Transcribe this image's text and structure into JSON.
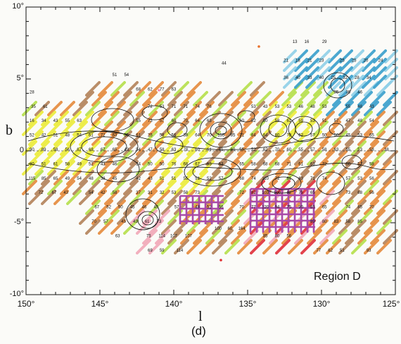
{
  "figure": {
    "region_label": "Region D",
    "panel_label": "(d)",
    "x_axis_label": "l",
    "y_axis_label": "b"
  },
  "axes": {
    "x_ticks": [
      "150°",
      "145°",
      "140°",
      "135°",
      "130°",
      "125°"
    ],
    "y_ticks": [
      "10°",
      "5°",
      "0",
      "-5°",
      "-10°"
    ],
    "x_range": [
      150,
      125
    ],
    "y_range": [
      10,
      -10
    ]
  },
  "colors": {
    "frame": "#111111",
    "orange": "#e58a3c",
    "brown": "#b4835a",
    "yellow": "#ecec3a",
    "lightgreen": "#b6e04c",
    "pink": "#f2a8b8",
    "red": "#e0303a",
    "purple": "#a84aa8",
    "cyan": "#3aa0cc",
    "lightblue": "#90d0e8",
    "contour": "#111111"
  },
  "numbers": [
    {
      "l": 149.6,
      "b": 4.0,
      "t": "28"
    },
    {
      "l": 149.5,
      "b": 3.0,
      "t": "35"
    },
    {
      "l": 148.7,
      "b": 3.0,
      "t": "61"
    },
    {
      "l": 149.6,
      "b": 2.0,
      "t": "16"
    },
    {
      "l": 148.8,
      "b": 2.0,
      "t": "34"
    },
    {
      "l": 148.0,
      "b": 2.0,
      "t": "43"
    },
    {
      "l": 147.2,
      "b": 2.0,
      "t": "55"
    },
    {
      "l": 146.4,
      "b": 2.0,
      "t": "63"
    },
    {
      "l": 149.6,
      "b": 1.0,
      "t": "52"
    },
    {
      "l": 148.8,
      "b": 1.0,
      "t": "42"
    },
    {
      "l": 148.0,
      "b": 1.0,
      "t": "51"
    },
    {
      "l": 147.2,
      "b": 1.0,
      "t": "48"
    },
    {
      "l": 146.4,
      "b": 1.0,
      "t": "54"
    },
    {
      "l": 145.6,
      "b": 1.0,
      "t": "61"
    },
    {
      "l": 144.8,
      "b": 1.0,
      "t": "72"
    },
    {
      "l": 144.0,
      "b": 1.0,
      "t": "63"
    },
    {
      "l": 143.2,
      "b": 1.0,
      "t": "55"
    },
    {
      "l": 149.6,
      "b": 0.0,
      "t": "90"
    },
    {
      "l": 148.8,
      "b": 0.0,
      "t": "69"
    },
    {
      "l": 148.0,
      "b": 0.0,
      "t": "58"
    },
    {
      "l": 147.2,
      "b": 0.0,
      "t": "56"
    },
    {
      "l": 146.4,
      "b": 0.0,
      "t": "67"
    },
    {
      "l": 145.6,
      "b": 0.0,
      "t": "68"
    },
    {
      "l": 144.8,
      "b": 0.0,
      "t": "67"
    },
    {
      "l": 144.0,
      "b": 0.0,
      "t": "65"
    },
    {
      "l": 143.2,
      "b": 0.0,
      "t": "43"
    },
    {
      "l": 149.6,
      "b": -1.0,
      "t": "80"
    },
    {
      "l": 148.8,
      "b": -1.0,
      "t": "51"
    },
    {
      "l": 148.0,
      "b": -1.0,
      "t": "61"
    },
    {
      "l": 147.2,
      "b": -1.0,
      "t": "58"
    },
    {
      "l": 146.4,
      "b": -1.0,
      "t": "49"
    },
    {
      "l": 145.6,
      "b": -1.0,
      "t": "52"
    },
    {
      "l": 144.8,
      "b": -1.0,
      "t": "43"
    },
    {
      "l": 144.0,
      "b": -1.0,
      "t": "46"
    },
    {
      "l": 149.6,
      "b": -2.0,
      "t": "115"
    },
    {
      "l": 148.8,
      "b": -2.0,
      "t": "85"
    },
    {
      "l": 148.0,
      "b": -2.0,
      "t": "65"
    },
    {
      "l": 147.2,
      "b": -2.0,
      "t": "49"
    },
    {
      "l": 146.4,
      "b": -2.0,
      "t": "54"
    },
    {
      "l": 145.6,
      "b": -2.0,
      "t": "48"
    },
    {
      "l": 144.8,
      "b": -2.0,
      "t": "38"
    },
    {
      "l": 144.0,
      "b": -2.0,
      "t": "45"
    },
    {
      "l": 149.0,
      "b": -3.0,
      "t": "72"
    },
    {
      "l": 148.1,
      "b": -3.0,
      "t": "67"
    },
    {
      "l": 147.3,
      "b": -3.0,
      "t": "43"
    },
    {
      "l": 145.6,
      "b": -3.0,
      "t": "54"
    },
    {
      "l": 144.8,
      "b": -3.0,
      "t": "42"
    },
    {
      "l": 144.0,
      "b": -3.0,
      "t": "58"
    },
    {
      "l": 145.2,
      "b": -4.0,
      "t": "67"
    },
    {
      "l": 144.4,
      "b": -4.0,
      "t": "52"
    },
    {
      "l": 143.6,
      "b": -4.0,
      "t": "50"
    },
    {
      "l": 142.8,
      "b": -4.0,
      "t": "45"
    },
    {
      "l": 142.0,
      "b": -4.0,
      "t": "46"
    },
    {
      "l": 141.2,
      "b": -4.0,
      "t": "45"
    },
    {
      "l": 145.4,
      "b": -5.0,
      "t": "70"
    },
    {
      "l": 144.6,
      "b": -5.0,
      "t": "57"
    },
    {
      "l": 143.4,
      "b": -5.0,
      "t": "45"
    },
    {
      "l": 142.6,
      "b": -5.0,
      "t": "43"
    },
    {
      "l": 141.8,
      "b": -5.0,
      "t": "61"
    },
    {
      "l": 141.0,
      "b": -5.0,
      "t": "73"
    },
    {
      "l": 143.8,
      "b": -6.0,
      "t": "63"
    },
    {
      "l": 141.7,
      "b": -6.0,
      "t": "75"
    },
    {
      "l": 140.8,
      "b": -6.0,
      "t": "114"
    },
    {
      "l": 140.0,
      "b": -6.0,
      "t": "107"
    },
    {
      "l": 139.0,
      "b": -6.0,
      "t": "107"
    },
    {
      "l": 141.6,
      "b": -7.0,
      "t": "69"
    },
    {
      "l": 140.8,
      "b": -7.0,
      "t": "59"
    },
    {
      "l": 139.6,
      "b": -7.0,
      "t": "114"
    },
    {
      "l": 144.0,
      "b": 5.2,
      "t": "51"
    },
    {
      "l": 143.2,
      "b": 5.2,
      "t": "54"
    },
    {
      "l": 142.4,
      "b": 4.2,
      "t": "68"
    },
    {
      "l": 141.6,
      "b": 4.2,
      "t": "62"
    },
    {
      "l": 140.8,
      "b": 4.2,
      "t": "77"
    },
    {
      "l": 140.0,
      "b": 4.2,
      "t": "63"
    },
    {
      "l": 141.6,
      "b": 3.0,
      "t": "72"
    },
    {
      "l": 140.8,
      "b": 3.0,
      "t": "53"
    },
    {
      "l": 140.0,
      "b": 3.0,
      "t": "71"
    },
    {
      "l": 139.2,
      "b": 3.0,
      "t": "71"
    },
    {
      "l": 138.4,
      "b": 3.0,
      "t": "74"
    },
    {
      "l": 137.6,
      "b": 3.0,
      "t": "76"
    },
    {
      "l": 142.4,
      "b": 2.0,
      "t": "55"
    },
    {
      "l": 141.6,
      "b": 2.0,
      "t": "73"
    },
    {
      "l": 140.8,
      "b": 2.0,
      "t": "57"
    },
    {
      "l": 140.0,
      "b": 2.0,
      "t": "60"
    },
    {
      "l": 139.2,
      "b": 2.0,
      "t": "70"
    },
    {
      "l": 138.4,
      "b": 2.0,
      "t": "64"
    },
    {
      "l": 137.6,
      "b": 2.0,
      "t": "63"
    },
    {
      "l": 142.4,
      "b": 1.0,
      "t": "61"
    },
    {
      "l": 141.6,
      "b": 1.0,
      "t": "25"
    },
    {
      "l": 140.8,
      "b": 1.0,
      "t": "58"
    },
    {
      "l": 140.0,
      "b": 1.0,
      "t": "56"
    },
    {
      "l": 139.2,
      "b": 1.0,
      "t": "38"
    },
    {
      "l": 138.4,
      "b": 1.0,
      "t": "64"
    },
    {
      "l": 137.6,
      "b": 1.0,
      "t": "70"
    },
    {
      "l": 136.8,
      "b": 1.0,
      "t": "155"
    },
    {
      "l": 136.0,
      "b": 1.0,
      "t": "85"
    },
    {
      "l": 142.4,
      "b": 0.0,
      "t": "54"
    },
    {
      "l": 141.6,
      "b": 0.0,
      "t": "47"
    },
    {
      "l": 140.8,
      "b": 0.0,
      "t": "58"
    },
    {
      "l": 140.0,
      "b": 0.0,
      "t": "63"
    },
    {
      "l": 139.2,
      "b": 0.0,
      "t": "78"
    },
    {
      "l": 138.4,
      "b": 0.0,
      "t": "60"
    },
    {
      "l": 137.6,
      "b": 0.0,
      "t": "61"
    },
    {
      "l": 136.8,
      "b": 0.0,
      "t": "61"
    },
    {
      "l": 136.0,
      "b": 0.0,
      "t": "60"
    },
    {
      "l": 142.4,
      "b": -1.0,
      "t": "34"
    },
    {
      "l": 141.6,
      "b": -1.0,
      "t": "50"
    },
    {
      "l": 140.8,
      "b": -1.0,
      "t": "50"
    },
    {
      "l": 140.0,
      "b": -1.0,
      "t": "76"
    },
    {
      "l": 139.2,
      "b": -1.0,
      "t": "68"
    },
    {
      "l": 138.4,
      "b": -1.0,
      "t": "67"
    },
    {
      "l": 137.6,
      "b": -1.0,
      "t": "53"
    },
    {
      "l": 136.8,
      "b": -1.0,
      "t": "53"
    },
    {
      "l": 142.4,
      "b": -2.0,
      "t": "42"
    },
    {
      "l": 141.6,
      "b": -2.0,
      "t": "43"
    },
    {
      "l": 140.8,
      "b": -2.0,
      "t": "51"
    },
    {
      "l": 140.0,
      "b": -2.0,
      "t": "51"
    },
    {
      "l": 139.2,
      "b": -2.0,
      "t": "55"
    },
    {
      "l": 138.4,
      "b": -2.0,
      "t": "51"
    },
    {
      "l": 137.6,
      "b": -2.0,
      "t": "52"
    },
    {
      "l": 136.8,
      "b": -2.0,
      "t": "57"
    },
    {
      "l": 142.4,
      "b": -3.0,
      "t": "37"
    },
    {
      "l": 141.6,
      "b": -3.0,
      "t": "31"
    },
    {
      "l": 140.8,
      "b": -3.0,
      "t": "32"
    },
    {
      "l": 140.0,
      "b": -3.0,
      "t": "53"
    },
    {
      "l": 139.2,
      "b": -3.0,
      "t": "58"
    },
    {
      "l": 138.4,
      "b": -3.0,
      "t": "73"
    },
    {
      "l": 139.8,
      "b": -4.0,
      "t": "57"
    },
    {
      "l": 138.4,
      "b": -4.0,
      "t": "48"
    },
    {
      "l": 137.6,
      "b": -4.0,
      "t": "52"
    },
    {
      "l": 136.8,
      "b": -4.0,
      "t": "56"
    },
    {
      "l": 137.0,
      "b": -5.5,
      "t": "100"
    },
    {
      "l": 136.2,
      "b": -5.5,
      "t": "60"
    },
    {
      "l": 135.4,
      "b": -5.5,
      "t": "164"
    },
    {
      "l": 136.6,
      "b": 6.0,
      "t": "44"
    },
    {
      "l": 134.6,
      "b": 3.0,
      "t": "53"
    },
    {
      "l": 133.8,
      "b": 3.0,
      "t": "43"
    },
    {
      "l": 133.0,
      "b": 3.0,
      "t": "53"
    },
    {
      "l": 132.2,
      "b": 3.0,
      "t": "53"
    },
    {
      "l": 131.4,
      "b": 3.0,
      "t": "46"
    },
    {
      "l": 130.6,
      "b": 3.0,
      "t": "48"
    },
    {
      "l": 129.8,
      "b": 3.0,
      "t": "53"
    },
    {
      "l": 135.4,
      "b": 2.0,
      "t": "60"
    },
    {
      "l": 134.6,
      "b": 2.0,
      "t": "52"
    },
    {
      "l": 133.8,
      "b": 2.0,
      "t": "50"
    },
    {
      "l": 133.0,
      "b": 2.0,
      "t": "58"
    },
    {
      "l": 132.2,
      "b": 2.0,
      "t": "61"
    },
    {
      "l": 131.4,
      "b": 2.0,
      "t": "59"
    },
    {
      "l": 130.6,
      "b": 2.0,
      "t": "53"
    },
    {
      "l": 129.8,
      "b": 2.0,
      "t": "51"
    },
    {
      "l": 129.0,
      "b": 2.0,
      "t": "57"
    },
    {
      "l": 135.4,
      "b": 1.0,
      "t": "71"
    },
    {
      "l": 134.6,
      "b": 1.0,
      "t": "64"
    },
    {
      "l": 133.8,
      "b": 1.0,
      "t": "64"
    },
    {
      "l": 133.0,
      "b": 1.0,
      "t": "80"
    },
    {
      "l": 132.2,
      "b": 1.0,
      "t": "78"
    },
    {
      "l": 131.4,
      "b": 1.0,
      "t": "62"
    },
    {
      "l": 130.6,
      "b": 1.0,
      "t": "57"
    },
    {
      "l": 129.8,
      "b": 1.0,
      "t": "50"
    },
    {
      "l": 129.0,
      "b": 1.0,
      "t": "56"
    },
    {
      "l": 135.4,
      "b": 0.0,
      "t": "55"
    },
    {
      "l": 134.6,
      "b": 0.0,
      "t": "52"
    },
    {
      "l": 133.8,
      "b": 0.0,
      "t": "62"
    },
    {
      "l": 133.0,
      "b": 0.0,
      "t": "70"
    },
    {
      "l": 132.2,
      "b": 0.0,
      "t": "60"
    },
    {
      "l": 131.4,
      "b": 0.0,
      "t": "55"
    },
    {
      "l": 130.6,
      "b": 0.0,
      "t": "57"
    },
    {
      "l": 129.8,
      "b": 0.0,
      "t": "58"
    },
    {
      "l": 129.0,
      "b": 0.0,
      "t": "63"
    },
    {
      "l": 135.4,
      "b": -1.0,
      "t": "65"
    },
    {
      "l": 134.6,
      "b": -1.0,
      "t": "58"
    },
    {
      "l": 133.8,
      "b": -1.0,
      "t": "68"
    },
    {
      "l": 133.0,
      "b": -1.0,
      "t": "68"
    },
    {
      "l": 132.2,
      "b": -1.0,
      "t": "71"
    },
    {
      "l": 131.4,
      "b": -1.0,
      "t": "61"
    },
    {
      "l": 130.6,
      "b": -1.0,
      "t": "63"
    },
    {
      "l": 129.8,
      "b": -1.0,
      "t": "72"
    },
    {
      "l": 135.4,
      "b": -2.0,
      "t": "68"
    },
    {
      "l": 134.6,
      "b": -2.0,
      "t": "74"
    },
    {
      "l": 133.8,
      "b": -2.0,
      "t": "110"
    },
    {
      "l": 133.0,
      "b": -2.0,
      "t": "72"
    },
    {
      "l": 132.2,
      "b": -2.0,
      "t": "61"
    },
    {
      "l": 131.4,
      "b": -2.0,
      "t": "63"
    },
    {
      "l": 130.6,
      "b": -2.0,
      "t": "71"
    },
    {
      "l": 129.8,
      "b": -2.0,
      "t": "74"
    },
    {
      "l": 135.4,
      "b": -3.0,
      "t": "72"
    },
    {
      "l": 134.6,
      "b": -3.0,
      "t": "82"
    },
    {
      "l": 133.8,
      "b": -3.0,
      "t": "103"
    },
    {
      "l": 133.0,
      "b": -3.0,
      "t": "100"
    },
    {
      "l": 132.2,
      "b": -3.0,
      "t": "82"
    },
    {
      "l": 131.4,
      "b": -3.0,
      "t": "75"
    },
    {
      "l": 130.6,
      "b": -3.0,
      "t": "65"
    },
    {
      "l": 135.4,
      "b": -4.0,
      "t": "70"
    },
    {
      "l": 134.6,
      "b": -4.0,
      "t": "77"
    },
    {
      "l": 133.8,
      "b": -4.0,
      "t": "120"
    },
    {
      "l": 133.0,
      "b": -4.0,
      "t": "94"
    },
    {
      "l": 132.2,
      "b": -4.0,
      "t": "75"
    },
    {
      "l": 131.4,
      "b": -4.0,
      "t": "90"
    },
    {
      "l": 130.6,
      "b": -4.0,
      "t": "83"
    },
    {
      "l": 129.8,
      "b": -4.0,
      "t": "65"
    },
    {
      "l": 133.8,
      "b": -6.0,
      "t": "85"
    },
    {
      "l": 133.0,
      "b": -6.0,
      "t": "80"
    },
    {
      "l": 132.2,
      "b": -6.0,
      "t": "56"
    },
    {
      "l": 130.6,
      "b": -5.0,
      "t": "89"
    },
    {
      "l": 129.8,
      "b": -5.0,
      "t": "80"
    },
    {
      "l": 129.0,
      "b": -5.0,
      "t": "83"
    },
    {
      "l": 128.2,
      "b": -5.0,
      "t": "58"
    },
    {
      "l": 127.4,
      "b": -5.0,
      "t": "85"
    },
    {
      "l": 130.2,
      "b": -7.0,
      "t": "77"
    },
    {
      "l": 129.4,
      "b": -7.0,
      "t": "62"
    },
    {
      "l": 128.6,
      "b": -7.0,
      "t": "51"
    },
    {
      "l": 126.8,
      "b": -7.0,
      "t": "93"
    },
    {
      "l": 131.8,
      "b": 7.5,
      "t": "13"
    },
    {
      "l": 131.0,
      "b": 7.5,
      "t": "16"
    },
    {
      "l": 129.8,
      "b": 7.5,
      "t": "29"
    },
    {
      "l": 132.4,
      "b": 6.2,
      "t": "21"
    },
    {
      "l": 131.6,
      "b": 6.2,
      "t": "18"
    },
    {
      "l": 130.8,
      "b": 6.2,
      "t": "21"
    },
    {
      "l": 130.0,
      "b": 6.2,
      "t": "23"
    },
    {
      "l": 128.6,
      "b": 6.2,
      "t": "25"
    },
    {
      "l": 127.8,
      "b": 6.2,
      "t": "25"
    },
    {
      "l": 127.0,
      "b": 6.2,
      "t": "20"
    },
    {
      "l": 126.0,
      "b": 6.2,
      "t": "24"
    },
    {
      "l": 132.4,
      "b": 5.0,
      "t": "36"
    },
    {
      "l": 131.6,
      "b": 5.0,
      "t": "40"
    },
    {
      "l": 130.8,
      "b": 5.0,
      "t": "33"
    },
    {
      "l": 130.0,
      "b": 5.0,
      "t": "40"
    },
    {
      "l": 129.2,
      "b": 5.0,
      "t": "25"
    },
    {
      "l": 128.4,
      "b": 5.0,
      "t": "32"
    },
    {
      "l": 127.6,
      "b": 5.0,
      "t": "28"
    },
    {
      "l": 126.8,
      "b": 5.0,
      "t": "34"
    },
    {
      "l": 129.0,
      "b": 4.0,
      "t": "35"
    },
    {
      "l": 128.2,
      "b": 4.0,
      "t": "36"
    },
    {
      "l": 127.4,
      "b": 4.0,
      "t": "46"
    },
    {
      "l": 128.2,
      "b": 3.0,
      "t": "55"
    },
    {
      "l": 127.4,
      "b": 3.0,
      "t": "48"
    },
    {
      "l": 126.6,
      "b": 3.0,
      "t": "43"
    },
    {
      "l": 128.2,
      "b": 2.0,
      "t": "47"
    },
    {
      "l": 127.4,
      "b": 2.0,
      "t": "48"
    },
    {
      "l": 126.6,
      "b": 2.0,
      "t": "54"
    },
    {
      "l": 128.2,
      "b": 1.0,
      "t": "45"
    },
    {
      "l": 127.4,
      "b": 1.0,
      "t": "53"
    },
    {
      "l": 126.6,
      "b": 1.0,
      "t": "65"
    },
    {
      "l": 128.2,
      "b": 0.0,
      "t": "55"
    },
    {
      "l": 127.4,
      "b": 0.0,
      "t": "53"
    },
    {
      "l": 126.6,
      "b": 0.0,
      "t": "58"
    },
    {
      "l": 125.6,
      "b": 0.0,
      "t": "38"
    },
    {
      "l": 128.2,
      "b": -1.0,
      "t": "60"
    },
    {
      "l": 127.4,
      "b": -1.0,
      "t": "57"
    },
    {
      "l": 126.6,
      "b": -1.0,
      "t": "58"
    },
    {
      "l": 128.2,
      "b": -2.0,
      "t": "57"
    },
    {
      "l": 127.4,
      "b": -2.0,
      "t": "53"
    },
    {
      "l": 126.6,
      "b": -2.0,
      "t": "56"
    },
    {
      "l": 128.2,
      "b": -3.0,
      "t": "73"
    },
    {
      "l": 127.4,
      "b": -3.0,
      "t": "68"
    },
    {
      "l": 126.6,
      "b": -3.0,
      "t": "56"
    },
    {
      "l": 128.2,
      "b": -4.0,
      "t": "74"
    },
    {
      "l": 127.4,
      "b": -4.0,
      "t": "85"
    },
    {
      "l": 126.6,
      "b": -4.0,
      "t": "70"
    }
  ]
}
